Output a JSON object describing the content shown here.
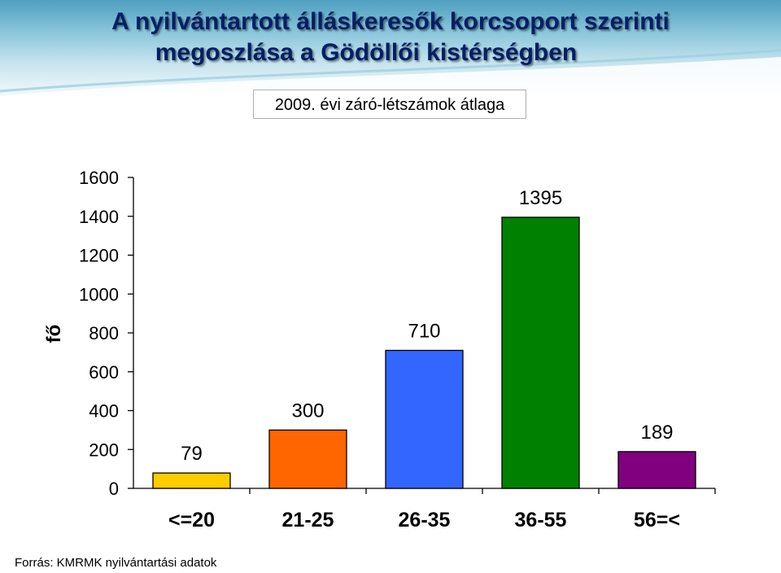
{
  "header": {
    "title_line1": "A nyilvántartott álláskeresők korcsoport szerinti",
    "title_line2": "megoszlása a Gödöllői kistérségben",
    "subtitle": "2009. évi záró-létszámok átlaga"
  },
  "footer": {
    "source": "Forrás: KMRMK nyilvántartási adatok"
  },
  "chart_data": {
    "type": "bar",
    "title": "A nyilvántartott álláskeresők korcsoport szerinti megoszlása a Gödöllői kistérségben",
    "subtitle": "2009. évi záró-létszámok átlaga",
    "ylabel": "fő",
    "xlabel": "",
    "ylim": [
      0,
      1600
    ],
    "yticks": [
      0,
      200,
      400,
      600,
      800,
      1000,
      1200,
      1400,
      1600
    ],
    "grid": false,
    "categories": [
      "<=20",
      "21-25",
      "26-35",
      "36-55",
      "56=<"
    ],
    "values": [
      79,
      300,
      710,
      1395,
      189
    ],
    "data_labels": [
      "79",
      "300",
      "710",
      "1395",
      "189"
    ],
    "colors": [
      "#FFCC00",
      "#FF6600",
      "#3366FF",
      "#008000",
      "#800080"
    ]
  }
}
